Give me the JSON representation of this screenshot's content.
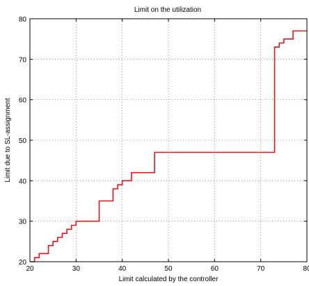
{
  "chart_data": {
    "type": "line",
    "title": "Limit on the utilization",
    "xlabel": "Limit calculated by the controller",
    "ylabel": "Limit due to SL-assignment",
    "xlim": [
      20,
      80
    ],
    "ylim": [
      20,
      80
    ],
    "xticks": [
      20,
      30,
      40,
      50,
      60,
      70,
      80
    ],
    "yticks": [
      20,
      30,
      40,
      50,
      60,
      70,
      80
    ],
    "grid": true,
    "series": [
      {
        "color": "#e8141c",
        "step": true,
        "x": [
          20,
          21,
          22,
          24,
          25,
          26,
          27,
          28,
          29,
          30,
          35,
          38,
          39,
          40,
          42,
          47,
          73,
          74,
          75,
          77,
          80
        ],
        "y": [
          20,
          21,
          22,
          24,
          25,
          26,
          27,
          28,
          29,
          30,
          35,
          38,
          39,
          40,
          42,
          47,
          73,
          74,
          75,
          77,
          77
        ]
      }
    ]
  }
}
